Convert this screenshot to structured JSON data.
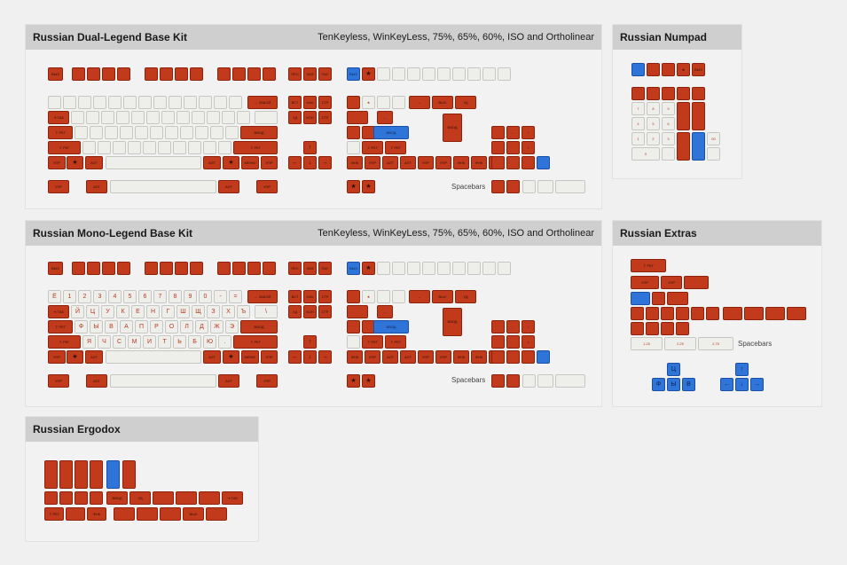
{
  "colors": {
    "red": "#c13a1b",
    "white": "#eeeeea",
    "blue": "#2f74d9",
    "header": "#cfcfcf"
  },
  "panels": {
    "dual": {
      "title": "Russian Dual-Legend Base Kit",
      "subtitle": "TenKeyless, WinKeyLess, 75%, 65%, 60%, ISO and Ortholinear",
      "spacebars_label": "Spacebars"
    },
    "numpad": {
      "title": "Russian Numpad"
    },
    "mono": {
      "title": "Russian Mono-Legend Base Kit",
      "subtitle": "TenKeyless, WinKeyLess, 75%, 65%, 60%, ISO and Ortholinear",
      "spacebars_label": "Spacebars"
    },
    "extras": {
      "title": "Russian Extras",
      "spacebars_label": "Spacebars"
    },
    "ergodox": {
      "title": "Russian Ergodox"
    }
  },
  "legends": {
    "esc": "ВЫХ",
    "tab": "⇥ ТАБ",
    "caps": "⇪ РЕГ",
    "shift": "⇧ РЕГ",
    "ctrl": "УПР",
    "alt": "АЛТ",
    "win": "★",
    "menu": "МЕНЮ",
    "bksp": "← ЗАБОЙ",
    "enter": "ВВОД",
    "ins": "ВСТ",
    "home": "НАЧ",
    "pgup": "СТР",
    "del": "УД",
    "end": "КОН",
    "pgdn": "СТР",
    "prt": "ПЕЧ",
    "scr": "ЗАФ",
    "pause": "ПАУ",
    "fn": "ФНК",
    "spacebar_sizes": [
      "1.25",
      "2.25",
      "2.75"
    ],
    "numpad_digits": [
      "7",
      "8",
      "9",
      "4",
      "5",
      "6",
      "1",
      "2",
      "3",
      "0",
      "00",
      "."
    ],
    "mono_num_row": [
      "Ё",
      "1",
      "2",
      "3",
      "4",
      "5",
      "6",
      "7",
      "8",
      "9",
      "0",
      "-",
      "="
    ],
    "mono_row_q": [
      "Й",
      "Ц",
      "У",
      "К",
      "Е",
      "Н",
      "Г",
      "Ш",
      "Щ",
      "З",
      "Х",
      "Ъ",
      "\\"
    ],
    "mono_row_a": [
      "Ф",
      "Ы",
      "В",
      "А",
      "П",
      "Р",
      "О",
      "Л",
      "Д",
      "Ж",
      "Э"
    ],
    "mono_row_z": [
      "Я",
      "Ч",
      "С",
      "М",
      "И",
      "Т",
      "Ь",
      "Б",
      "Ю",
      "."
    ],
    "extras_blue": [
      "Ц",
      "Ф",
      "Ы",
      "В"
    ]
  }
}
